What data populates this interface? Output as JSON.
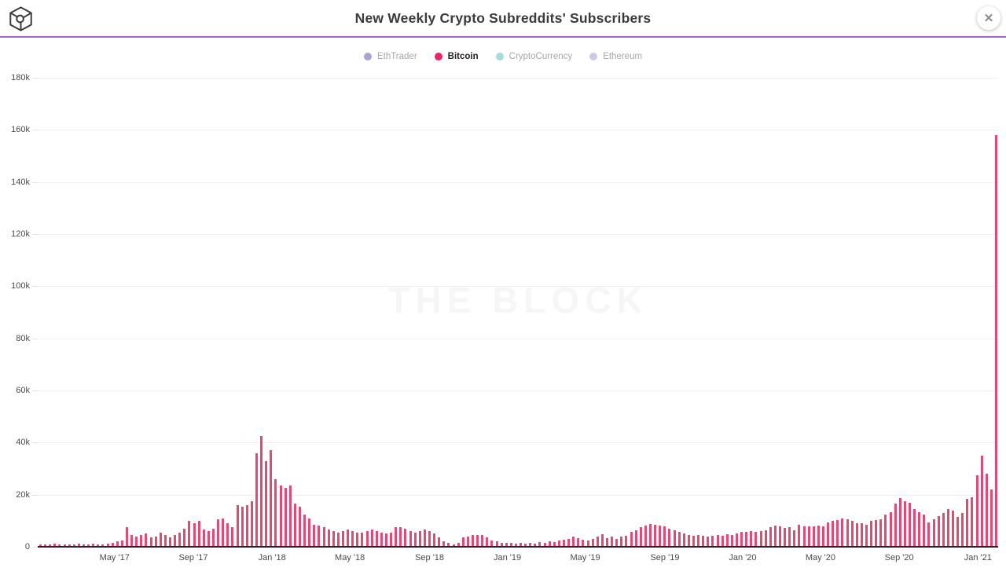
{
  "header": {
    "title": "New Weekly Crypto Subreddits' Subscribers",
    "close_label": "✕"
  },
  "watermark": "THE BLOCK",
  "legend": [
    {
      "label": "EthTrader",
      "color": "#a9a5cf",
      "active": false
    },
    {
      "label": "Bitcoin",
      "color": "#ed2364",
      "active": true
    },
    {
      "label": "CryptoCurrency",
      "color": "#a5dbd8",
      "active": false
    },
    {
      "label": "Ethereum",
      "color": "#cdc9ea",
      "active": false
    }
  ],
  "chart_data": {
    "type": "bar",
    "title": "New Weekly Crypto Subreddits' Subscribers",
    "series_name": "Bitcoin",
    "unit": "new weekly subscribers, thousands",
    "bar_color": "#e04a73",
    "grid": true,
    "legend_position": "top",
    "ylim": [
      0,
      180
    ],
    "y_ticks": [
      "180k",
      "160k",
      "140k",
      "120k",
      "100k",
      "80k",
      "60k",
      "40k",
      "20k",
      "0"
    ],
    "x_ticks": [
      {
        "label": "May '17",
        "pos": 0.08
      },
      {
        "label": "Sep '17",
        "pos": 0.162
      },
      {
        "label": "Jan '18",
        "pos": 0.244
      },
      {
        "label": "May '18",
        "pos": 0.325
      },
      {
        "label": "Sep '18",
        "pos": 0.408
      },
      {
        "label": "Jan '19",
        "pos": 0.489
      },
      {
        "label": "May '19",
        "pos": 0.57
      },
      {
        "label": "Sep '19",
        "pos": 0.653
      },
      {
        "label": "Jan '20",
        "pos": 0.734
      },
      {
        "label": "May '20",
        "pos": 0.815
      },
      {
        "label": "Sep '20",
        "pos": 0.897
      },
      {
        "label": "Jan '21",
        "pos": 0.979
      }
    ],
    "x_range": [
      "Jan '17",
      "Jan '21"
    ],
    "values_k": [
      0.8,
      1.0,
      0.9,
      1.1,
      0.8,
      0.9,
      1.0,
      0.8,
      1.2,
      0.9,
      1.0,
      1.1,
      0.9,
      1.0,
      1.2,
      1.5,
      2.0,
      2.5,
      7.5,
      4.5,
      4.0,
      4.5,
      5.0,
      3.5,
      4.0,
      5.5,
      4.5,
      3.5,
      4.5,
      5.5,
      7.0,
      10.0,
      9.0,
      10.0,
      6.5,
      6.0,
      7.0,
      10.5,
      11.0,
      9.0,
      7.5,
      16.0,
      15.5,
      16.0,
      17.5,
      36.0,
      42.5,
      33.0,
      37.0,
      26.0,
      23.5,
      22.5,
      23.5,
      16.5,
      15.5,
      12.5,
      11.0,
      8.5,
      8.0,
      7.5,
      6.5,
      6.0,
      5.5,
      6.0,
      6.5,
      6.0,
      5.5,
      5.5,
      6.0,
      6.5,
      6.0,
      5.5,
      5.0,
      5.5,
      7.5,
      7.5,
      7.0,
      6.0,
      5.5,
      6.0,
      6.5,
      6.0,
      5.0,
      3.5,
      2.0,
      1.5,
      1.0,
      1.5,
      3.5,
      4.0,
      4.5,
      4.5,
      4.5,
      3.5,
      2.5,
      2.0,
      1.6,
      1.6,
      1.6,
      1.3,
      1.6,
      1.3,
      1.6,
      1.3,
      1.8,
      1.6,
      2.0,
      1.8,
      2.3,
      2.8,
      3.0,
      3.8,
      3.3,
      2.6,
      2.3,
      3.0,
      3.8,
      4.8,
      3.3,
      3.8,
      3.0,
      3.8,
      4.3,
      5.6,
      6.3,
      7.4,
      8.1,
      8.7,
      8.4,
      8.1,
      7.7,
      7.0,
      6.3,
      5.6,
      5.0,
      4.6,
      4.3,
      4.6,
      4.3,
      4.0,
      4.3,
      4.6,
      4.3,
      4.8,
      4.6,
      5.0,
      5.6,
      5.8,
      6.0,
      5.8,
      6.0,
      6.3,
      7.4,
      8.1,
      7.7,
      7.1,
      7.4,
      6.3,
      8.4,
      7.7,
      7.9,
      7.7,
      8.1,
      7.9,
      9.4,
      9.9,
      10.4,
      10.9,
      10.5,
      10.0,
      9.0,
      9.1,
      8.4,
      10.1,
      10.4,
      10.7,
      12.4,
      13.4,
      16.5,
      18.8,
      17.5,
      17.0,
      14.4,
      13.4,
      12.4,
      9.4,
      10.7,
      11.7,
      12.9,
      14.4,
      13.9,
      11.4,
      12.9,
      18.5,
      19.0,
      27.5,
      35.0,
      28.0,
      22.0,
      158.0
    ]
  }
}
